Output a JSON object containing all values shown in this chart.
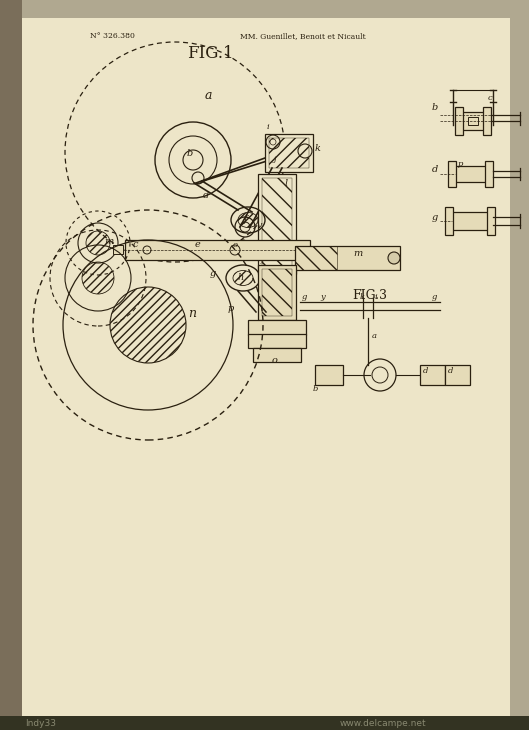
{
  "bg_color": "#ede5c8",
  "line_color": "#2a2010",
  "header_left": "N° 326.380",
  "header_right": "MM. Guenillet, Benoit et Nicault",
  "fig1_label": "FIG.1",
  "fig3_label": "FIG.3",
  "watermark_left": "Indy33",
  "watermark_right": "www.delcampe.net",
  "page_bg": "#b0a890",
  "spine_color": "#7a6e5a",
  "paper_bg": "#ede5c8"
}
